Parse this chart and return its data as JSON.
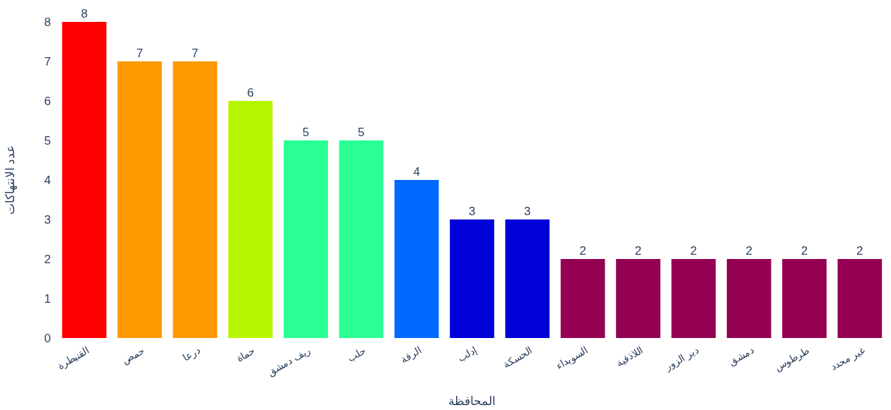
{
  "chart_data": {
    "type": "bar",
    "xlabel": "المحافظة",
    "ylabel": "عدد الانتهاكات",
    "categories": [
      "القنيطرة",
      "حمص",
      "درعا",
      "حماة",
      "ريف دمشق",
      "حلب",
      "الرقة",
      "إدلب",
      "الحسكة",
      "السويداء",
      "اللاذقية",
      "دير الزور",
      "دمشق",
      "طرطوس",
      "غير محدد"
    ],
    "values": [
      8,
      7,
      7,
      6,
      5,
      5,
      4,
      3,
      3,
      2,
      2,
      2,
      2,
      2,
      2
    ],
    "colors": [
      "#ff0000",
      "#ff9900",
      "#ff9900",
      "#b6f500",
      "#2aff94",
      "#2aff94",
      "#006aff",
      "#0000d8",
      "#0000d8",
      "#940052",
      "#940052",
      "#940052",
      "#940052",
      "#940052",
      "#940052"
    ],
    "ylim": [
      0,
      8
    ],
    "yticks": [
      0,
      1,
      2,
      3,
      4,
      5,
      6,
      7,
      8
    ],
    "data_labels": true
  }
}
